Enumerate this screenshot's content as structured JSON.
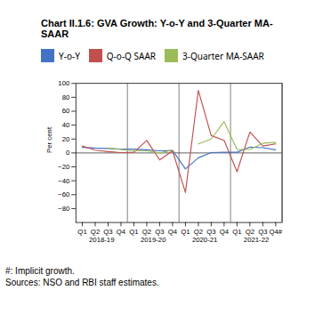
{
  "chart_data": {
    "type": "line",
    "title": "Chart II.1.6: GVA Growth: Y-o-Y and 3-Quarter MA-SAAR",
    "y_label": "Per cent",
    "categories": [
      "Q1",
      "Q2",
      "Q3",
      "Q4",
      "Q1",
      "Q2",
      "Q3",
      "Q4",
      "Q1",
      "Q2",
      "Q3",
      "Q4",
      "Q1",
      "Q2",
      "Q3",
      "Q4#"
    ],
    "annotations": [
      "2018-19",
      "2019-20",
      "2020-21",
      "2021-22"
    ],
    "caption": [
      "#: Implicit growth.",
      "Sources: NSO and RBI staff estimates."
    ],
    "series": [
      {
        "name": "Y-o-Y",
        "color": "#4472c4",
        "values": [
          8.0,
          7.0,
          6.5,
          5.5,
          5.5,
          4.5,
          3.0,
          3.5,
          -23.0,
          -7.0,
          0.5,
          1.0,
          1.0,
          8.5,
          7.5,
          4.5
        ]
      },
      {
        "name": "Q-o-Q SAAR",
        "color": "#c0504d",
        "values": [
          10.0,
          4.0,
          2.0,
          0.5,
          1.0,
          18.0,
          -10.0,
          3.0,
          -57.0,
          90.0,
          25.0,
          18.0,
          -27.0,
          30.0,
          10.0,
          13.0
        ]
      },
      {
        "name": "3-Quarter MA-SAAR",
        "color": "#9bbb59",
        "values": [
          null,
          null,
          7.0,
          5.0,
          3.0,
          3.0,
          0.0,
          4.0,
          null,
          13.0,
          20.0,
          45.0,
          5.0,
          5.0,
          14.0,
          15.0
        ]
      }
    ],
    "ylim": [
      -100,
      100
    ],
    "yticks": [
      -80,
      -60,
      -40,
      -20,
      0,
      20,
      40,
      60,
      80,
      100
    ],
    "grid": false,
    "legend": "top"
  }
}
